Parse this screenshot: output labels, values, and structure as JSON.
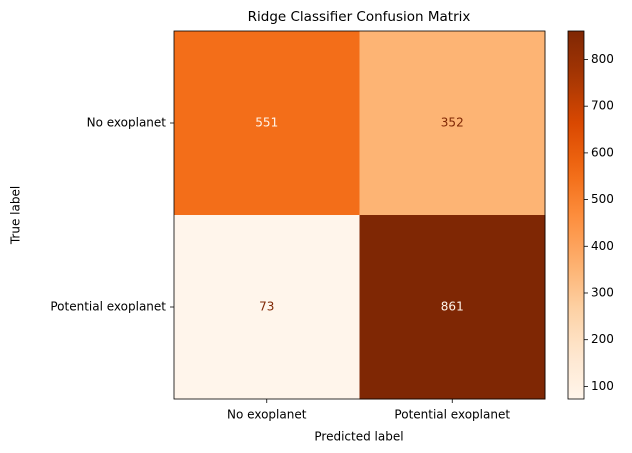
{
  "chart_data": {
    "type": "heatmap",
    "title": "Ridge Classifier Confusion Matrix",
    "xlabel": "Predicted label",
    "ylabel": "True label",
    "x_categories": [
      "No exoplanet",
      "Potential exoplanet"
    ],
    "y_categories": [
      "No exoplanet",
      "Potential exoplanet"
    ],
    "values": [
      [
        551,
        352
      ],
      [
        73,
        861
      ]
    ],
    "colormap": "Oranges",
    "clim": [
      73,
      861
    ],
    "cticks": [
      100,
      200,
      300,
      400,
      500,
      600,
      700,
      800
    ]
  }
}
